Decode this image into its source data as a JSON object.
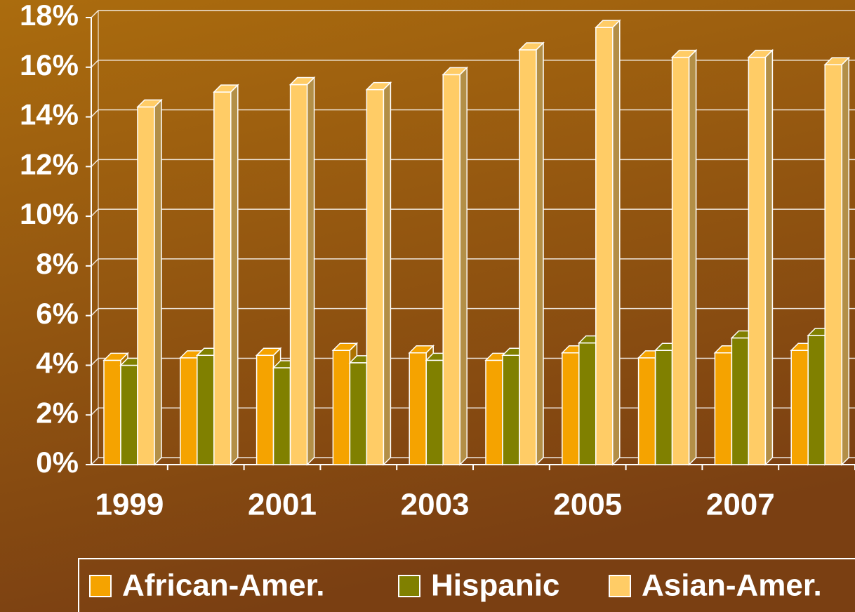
{
  "chart_data": {
    "type": "bar3d",
    "categories": [
      "1999",
      null,
      "2001",
      null,
      "2003",
      null,
      "2005",
      null,
      "2007",
      null
    ],
    "series": [
      {
        "name": "African-Amer.",
        "color": "#f5a300",
        "values": [
          4.2,
          4.3,
          4.4,
          4.6,
          4.5,
          4.2,
          4.5,
          4.3,
          4.5,
          4.6
        ]
      },
      {
        "name": "Hispanic",
        "color": "#808000",
        "values": [
          4.0,
          4.4,
          3.9,
          4.1,
          4.2,
          4.4,
          4.9,
          4.6,
          5.1,
          5.2
        ]
      },
      {
        "name": "Asian-Amer.",
        "color": "#ffcc66",
        "values": [
          14.4,
          15.0,
          15.3,
          15.1,
          15.7,
          16.7,
          17.6,
          16.4,
          16.4,
          16.1
        ]
      }
    ],
    "ylim": [
      0,
      18
    ],
    "yticks": [
      {
        "value": 0,
        "label": "0%"
      },
      {
        "value": 2,
        "label": "2%"
      },
      {
        "value": 4,
        "label": "4%"
      },
      {
        "value": 6,
        "label": "6%"
      },
      {
        "value": 8,
        "label": "8%"
      },
      {
        "value": 10,
        "label": "10%"
      },
      {
        "value": 12,
        "label": "12%"
      },
      {
        "value": 14,
        "label": "14%"
      },
      {
        "value": 16,
        "label": "16%"
      },
      {
        "value": 18,
        "label": "18%"
      }
    ],
    "grid": true,
    "legend": "bottom"
  }
}
